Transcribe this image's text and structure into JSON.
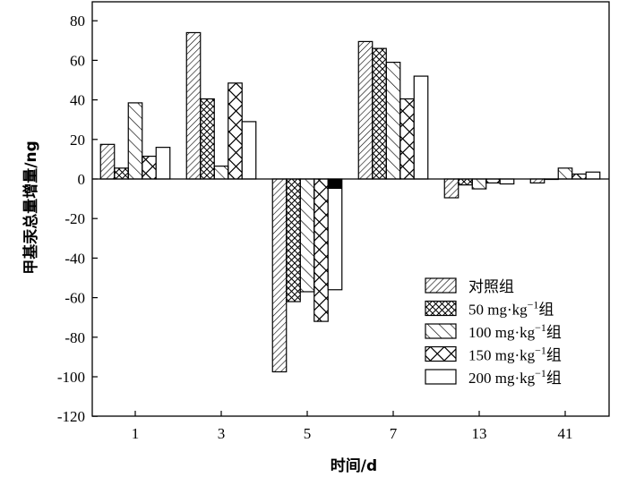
{
  "chart_data": {
    "type": "bar",
    "xlabel": "时间/d",
    "ylabel": "甲基汞总量增量/ng",
    "ylim": [
      -120,
      80
    ],
    "yticks": [
      -120,
      -100,
      -80,
      -60,
      -40,
      -20,
      0,
      20,
      40,
      60,
      80
    ],
    "categories": [
      "1",
      "3",
      "5",
      "7",
      "13",
      "41"
    ],
    "legend_position": "bottom-right",
    "series": [
      {
        "name": "对照组",
        "sup": "",
        "values": [
          17.5,
          74,
          -97.5,
          69.5,
          -9.5,
          -2
        ],
        "pattern": "diag"
      },
      {
        "name": "50 mg·kg",
        "sup": "−1",
        "suffix": "组",
        "values": [
          5.5,
          40.5,
          -62,
          66,
          -3,
          0
        ],
        "pattern": "cross-small"
      },
      {
        "name": "100 mg·kg",
        "sup": "−1",
        "suffix": "组",
        "values": [
          38.5,
          6.5,
          -57,
          59,
          -5,
          5.5
        ],
        "pattern": "back"
      },
      {
        "name": "150 mg·kg",
        "sup": "−1",
        "suffix": "组",
        "values": [
          11.5,
          48.5,
          -72,
          40.5,
          -2,
          2.5
        ],
        "pattern": "cross-big"
      },
      {
        "name": "200 mg·kg",
        "sup": "−1",
        "suffix": "组",
        "values": [
          16,
          29,
          -56,
          52,
          -2.5,
          3.5
        ],
        "pattern": "blank"
      }
    ],
    "annotation": {
      "category": "5",
      "series": "200 mg·kg",
      "black_segment_to": -5
    }
  }
}
